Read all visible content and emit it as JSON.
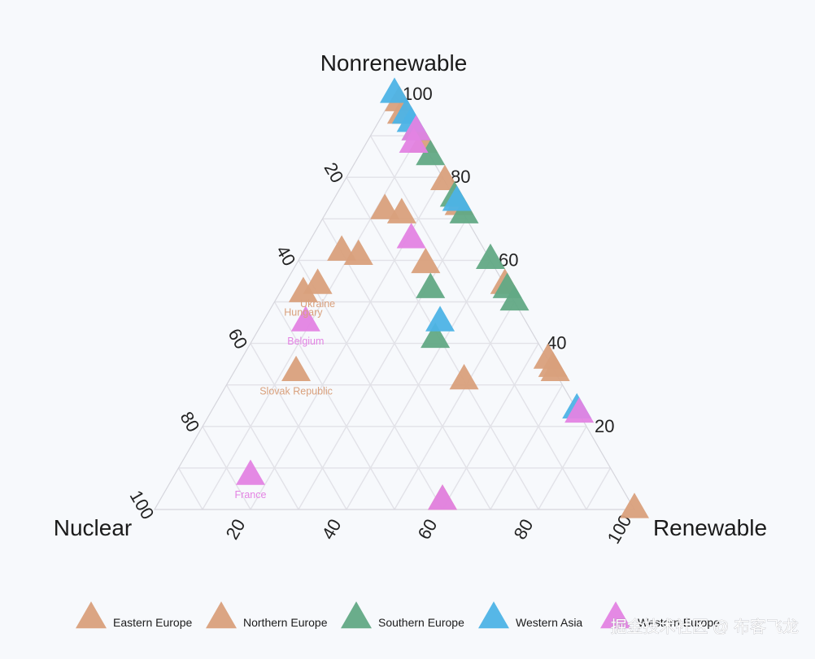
{
  "chart_data": {
    "type": "ternary-scatter",
    "axes": {
      "top": "Nonrenewable",
      "left": "Nuclear",
      "right": "Renewable",
      "range": [
        0,
        100
      ],
      "ticks": [
        20,
        40,
        60,
        80,
        100
      ]
    },
    "grid": true,
    "legend_position": "bottom",
    "marker": "triangle",
    "series": [
      {
        "name": "Eastern Europe",
        "color": "#d9a07c",
        "points": [
          {
            "nonrenewable": 73,
            "nuclear": 0,
            "renewable": 27
          },
          {
            "nonrenewable": 54,
            "nuclear": 39,
            "renewable": 7,
            "label": "Ukraine"
          },
          {
            "nonrenewable": 52,
            "nuclear": 43,
            "renewable": 5,
            "label": "Hungary"
          },
          {
            "nonrenewable": 33,
            "nuclear": 54,
            "renewable": 13,
            "label": "Slovak Republic"
          }
        ]
      },
      {
        "name": "Northern Europe",
        "color": "#d9a07c",
        "points": [
          {
            "nonrenewable": 98,
            "nuclear": 0,
            "renewable": 2
          },
          {
            "nonrenewable": 95,
            "nuclear": 1,
            "renewable": 4
          },
          {
            "nonrenewable": 88,
            "nuclear": 0,
            "renewable": 12
          },
          {
            "nonrenewable": 79,
            "nuclear": 0,
            "renewable": 21
          },
          {
            "nonrenewable": 72,
            "nuclear": 16,
            "renewable": 12
          },
          {
            "nonrenewable": 71,
            "nuclear": 13,
            "renewable": 16
          },
          {
            "nonrenewable": 62,
            "nuclear": 30,
            "renewable": 8
          },
          {
            "nonrenewable": 61,
            "nuclear": 27,
            "renewable": 12
          },
          {
            "nonrenewable": 59,
            "nuclear": 14,
            "renewable": 27
          },
          {
            "nonrenewable": 54,
            "nuclear": 0,
            "renewable": 46
          },
          {
            "nonrenewable": 36,
            "nuclear": 0,
            "renewable": 64
          },
          {
            "nonrenewable": 34,
            "nuclear": 0,
            "renewable": 66
          },
          {
            "nonrenewable": 33,
            "nuclear": 0,
            "renewable": 67
          },
          {
            "nonrenewable": 31,
            "nuclear": 20,
            "renewable": 49
          },
          {
            "nonrenewable": 2,
            "nuclear": 39,
            "renewable": 59
          },
          {
            "nonrenewable": 0,
            "nuclear": 0,
            "renewable": 100
          }
        ]
      },
      {
        "name": "Southern Europe",
        "color": "#62a985",
        "points": [
          {
            "nonrenewable": 91,
            "nuclear": 0,
            "renewable": 9
          },
          {
            "nonrenewable": 85,
            "nuclear": 0,
            "renewable": 15
          },
          {
            "nonrenewable": 75,
            "nuclear": 0,
            "renewable": 25
          },
          {
            "nonrenewable": 71,
            "nuclear": 0,
            "renewable": 29
          },
          {
            "nonrenewable": 60,
            "nuclear": 0,
            "renewable": 40
          },
          {
            "nonrenewable": 53,
            "nuclear": 0,
            "renewable": 47
          },
          {
            "nonrenewable": 50,
            "nuclear": 0,
            "renewable": 50
          },
          {
            "nonrenewable": 53,
            "nuclear": 16,
            "renewable": 31
          },
          {
            "nonrenewable": 41,
            "nuclear": 21,
            "renewable": 38
          }
        ]
      },
      {
        "name": "Western Asia",
        "color": "#4db3e6",
        "points": [
          {
            "nonrenewable": 100,
            "nuclear": 0,
            "renewable": 0
          },
          {
            "nonrenewable": 95,
            "nuclear": 0,
            "renewable": 5
          },
          {
            "nonrenewable": 93,
            "nuclear": 0,
            "renewable": 7
          },
          {
            "nonrenewable": 74,
            "nuclear": 0,
            "renewable": 26
          },
          {
            "nonrenewable": 24,
            "nuclear": 0,
            "renewable": 76
          },
          {
            "nonrenewable": 45,
            "nuclear": 18,
            "renewable": 37
          }
        ]
      },
      {
        "name": "Western Europe",
        "color": "#e383e3",
        "points": [
          {
            "nonrenewable": 91,
            "nuclear": 0,
            "renewable": 9
          },
          {
            "nonrenewable": 88,
            "nuclear": 2,
            "renewable": 10
          },
          {
            "nonrenewable": 65,
            "nuclear": 14,
            "renewable": 21
          },
          {
            "nonrenewable": 45,
            "nuclear": 46,
            "renewable": 9,
            "label": "Belgium"
          },
          {
            "nonrenewable": 8,
            "nuclear": 76,
            "renewable": 16,
            "label": "France"
          },
          {
            "nonrenewable": 2,
            "nuclear": 39,
            "renewable": 59
          },
          {
            "nonrenewable": 23,
            "nuclear": 0,
            "renewable": 77
          }
        ]
      }
    ]
  },
  "watermark": "掘金技术社区 @ 布客飞龙"
}
